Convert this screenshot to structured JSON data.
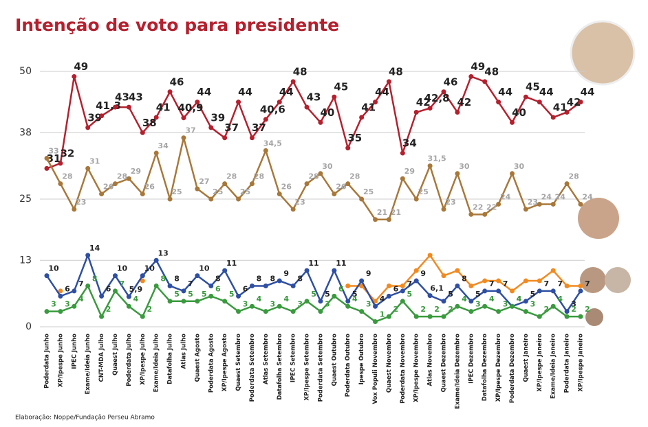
{
  "chart_data": {
    "type": "line",
    "title": "Intenção de voto para presidente",
    "source": "Elaboração: Noppe/Fundação Perseu Abramo",
    "categories": [
      "Poderdata Junho",
      "XP/Ipespe Junho",
      "IPEC Junho",
      "Exame/Ideia Junho",
      "CNT-MDA Julho",
      "Quaest Julho",
      "Poderdata Julho",
      "XP/Ipespe Julho",
      "Exame/Ideia Julho",
      "Datafolha Julho",
      "Atlas Julho",
      "Quaest Agosto",
      "Poderdata Agosto",
      "XP/Ipespe Agosto",
      "Quaest Setembro",
      "Poderdata Setembro",
      "Atlas Setembro",
      "Datafolha Setembro",
      "IPEC Setembro",
      "XP/Ipespe Setembro",
      "Poderdata Setembro",
      "Quaest Outubro",
      "Poderdata Outubro",
      "Ipespe Outubro",
      "Vox Populi Novembro",
      "Quaest Novembro",
      "Poderdata Novembro",
      "XP/Ipespe Novembro",
      "Atlas Novembro",
      "Quaest Dezembro",
      "Exame/Ideia Dezembro",
      "IPEC Dezembro",
      "Datafolha Dezembro",
      "XP/Ipespe Dezembro",
      "Poderdata Dezembro",
      "Quaest Janeiro",
      "XP/Ipespe Janeiro",
      "Exame/Ideia Janeiro",
      "Poderdata Janeiro",
      "XP/Ipespe Janeiro"
    ],
    "ylim": [
      0,
      50
    ],
    "yticks": [
      0,
      13,
      25,
      38,
      50
    ],
    "grid": true,
    "series": [
      {
        "color": "#b5202e",
        "label_color": "#222222",
        "values": [
          31,
          32,
          49,
          39,
          41.3,
          43,
          43,
          38,
          41,
          46,
          40.9,
          44,
          39,
          37,
          44,
          37,
          40.6,
          44,
          48,
          43,
          40,
          45,
          35,
          41,
          44,
          48,
          34,
          42,
          42.8,
          46,
          42,
          49,
          48,
          44,
          40,
          45,
          44,
          41,
          42,
          44
        ],
        "value_labels": [
          "31",
          "32",
          "49",
          "39",
          "41,3",
          "43",
          "43",
          "38",
          "41",
          "46",
          "40,9",
          "44",
          "39",
          "37",
          "44",
          "37",
          "40,6",
          "44",
          "48",
          "43",
          "40",
          "45",
          "35",
          "41",
          "44",
          "48",
          "34",
          "42",
          "42,8",
          "46",
          "42",
          "49",
          "48",
          "44",
          "40",
          "45",
          "44",
          "41",
          "42",
          "44"
        ]
      },
      {
        "color": "#a8783a",
        "label_color": "#a6a6a6",
        "values": [
          33,
          28,
          23,
          31,
          26,
          28,
          29,
          26,
          34,
          25,
          37,
          27,
          25,
          28,
          25,
          28,
          34.5,
          26,
          23,
          28,
          30,
          26,
          28,
          25,
          21,
          21,
          29,
          25,
          31.5,
          23,
          30,
          22,
          22,
          24,
          30,
          23,
          24,
          24,
          28,
          24
        ],
        "value_labels": [
          "33",
          "28",
          "23",
          "31",
          "26",
          "28",
          "29",
          "26",
          "34",
          "25",
          "37",
          "27",
          "25",
          "28",
          "25",
          "28",
          "34,5",
          "26",
          "23",
          "28",
          "30",
          "26",
          "28",
          "25",
          "21",
          "21",
          "29",
          "25",
          "31,5",
          "23",
          "30",
          "22",
          "22",
          "24",
          "30",
          "23",
          "24",
          "24",
          "28",
          "24"
        ]
      },
      {
        "color": "#f28a1f",
        "values": [
          null,
          7,
          null,
          null,
          null,
          null,
          null,
          9,
          null,
          null,
          null,
          null,
          null,
          null,
          null,
          null,
          null,
          null,
          null,
          null,
          null,
          null,
          8,
          8,
          5,
          8,
          8,
          11,
          14,
          10,
          11,
          8,
          9,
          9,
          7,
          9,
          9,
          11,
          8,
          8
        ]
      },
      {
        "color": "#2e4fa3",
        "label_color": "#222222",
        "values": [
          10,
          6,
          7,
          14,
          6,
          10,
          5.9,
          10,
          13,
          8,
          7,
          10,
          8,
          11,
          6,
          8,
          8,
          9,
          8,
          11,
          5,
          11,
          5,
          9,
          4,
          6,
          7,
          9,
          6.1,
          5,
          8,
          5,
          7,
          7,
          4,
          5,
          7,
          7,
          3,
          7
        ],
        "value_labels": [
          "10",
          "6",
          "7",
          "14",
          "6",
          "10",
          "5,9",
          "10",
          "13",
          "8",
          "7",
          "10",
          "8",
          "11",
          "6",
          "8",
          "8",
          "9",
          "8",
          "11",
          "5",
          "11",
          "5",
          "9",
          "4",
          "6",
          "7",
          "9",
          "6,1",
          "5",
          "8",
          "5",
          "7",
          "7",
          "4",
          "5",
          "7",
          "7",
          "3",
          "7"
        ]
      },
      {
        "color": "#3a9a3e",
        "label_color": "#3a9a3e",
        "values": [
          3,
          3,
          4,
          8,
          2,
          7,
          4,
          2,
          8,
          5,
          5,
          5,
          6,
          5,
          3,
          4,
          3,
          4,
          3,
          5,
          3,
          6,
          4,
          3,
          1,
          2,
          5,
          2,
          2,
          2,
          4,
          3,
          4,
          3,
          4,
          3,
          2,
          4,
          2,
          2
        ]
      }
    ]
  }
}
